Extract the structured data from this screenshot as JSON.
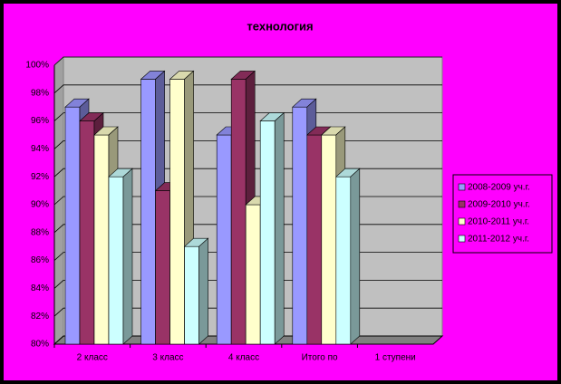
{
  "chart_data": {
    "type": "bar3d",
    "title": "технология",
    "categories": [
      "2 класс",
      "3 класс",
      "4 класс",
      "Итого по",
      "1 ступени"
    ],
    "series": [
      {
        "name": "2008-2009 уч.г.",
        "color": "#9999ff",
        "values": [
          97,
          99,
          95,
          97,
          null
        ]
      },
      {
        "name": "2009-2010 уч.г.",
        "color": "#993366",
        "values": [
          96,
          91,
          99,
          95,
          null
        ]
      },
      {
        "name": "2010-2011 уч.г.",
        "color": "#ffffcc",
        "values": [
          95,
          99,
          90,
          95,
          null
        ]
      },
      {
        "name": "2011-2012 уч.г.",
        "color": "#ccffff",
        "values": [
          92,
          87,
          96,
          92,
          null
        ]
      }
    ],
    "ylim": [
      80,
      100
    ],
    "yticks": [
      {
        "value": 80,
        "label": "80%"
      },
      {
        "value": 82,
        "label": "82%"
      },
      {
        "value": 84,
        "label": "84%"
      },
      {
        "value": 86,
        "label": "86%"
      },
      {
        "value": 88,
        "label": "88%"
      },
      {
        "value": 90,
        "label": "90%"
      },
      {
        "value": 92,
        "label": "92%"
      },
      {
        "value": 94,
        "label": "94%"
      },
      {
        "value": 96,
        "label": "96%"
      },
      {
        "value": 98,
        "label": "98%"
      },
      {
        "value": 100,
        "label": "100%"
      }
    ],
    "grid": true,
    "legend": "right"
  }
}
